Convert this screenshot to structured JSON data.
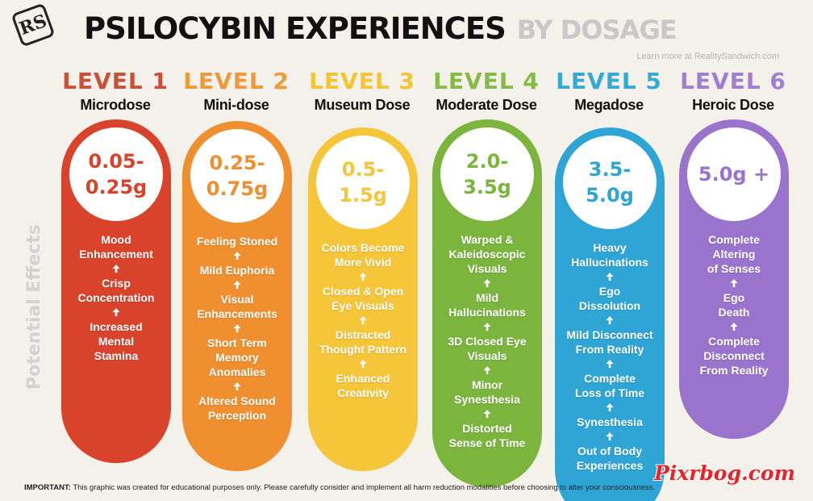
{
  "brand": {
    "logo_text": "RS"
  },
  "header": {
    "title_main": "PSILOCYBIN EXPERIENCES",
    "title_sub": "BY DOSAGE",
    "learn_more": "Learn more at RealitySandwich.com"
  },
  "side_label": "Potential Effects",
  "levels": [
    {
      "title": "LEVEL 1",
      "name": "Microdose",
      "dose": "0.05-\n0.25g",
      "color": "#d9432b",
      "title_color": "#c9513a",
      "effects": [
        "Mood\nEnhancement",
        "Crisp\nConcentration",
        "Increased\nMental\nStamina"
      ]
    },
    {
      "title": "LEVEL 2",
      "name": "Mini-dose",
      "dose": "0.25-\n0.75g",
      "color": "#ef8f2f",
      "title_color": "#ef9a3a",
      "effects": [
        "Feeling Stoned",
        "Mild Euphoria",
        "Visual\nEnhancements",
        "Short Term\nMemory\nAnomalies",
        "Altered Sound\nPerception"
      ]
    },
    {
      "title": "LEVEL 3",
      "name": "Museum Dose",
      "dose": "0.5-\n1.5g",
      "color": "#f5c53a",
      "title_color": "#f3c536",
      "effects": [
        "Colors Become\nMore Vivid",
        "Closed & Open\nEye Visuals",
        "Distracted\nThought Pattern",
        "Enhanced\nCreativity"
      ]
    },
    {
      "title": "LEVEL 4",
      "name": "Moderate Dose",
      "dose": "2.0-\n3.5g",
      "color": "#7bb53e",
      "title_color": "#86bb46",
      "effects": [
        "Warped &\nKaleidoscopic\nVisuals",
        "Mild\nHallucinations",
        "3D Closed Eye\nVisuals",
        "Minor\nSynesthesia",
        "Distorted\nSense of Time"
      ]
    },
    {
      "title": "LEVEL 5",
      "name": "Megadose",
      "dose": "3.5-\n5.0g",
      "color": "#2fa5d6",
      "title_color": "#35a9d8",
      "effects": [
        "Heavy\nHallucinations",
        "Ego\nDissolution",
        "Mild Disconnect\nFrom Reality",
        "Complete\nLoss of Time",
        "Synesthesia",
        "Out of Body\nExperiences"
      ]
    },
    {
      "title": "LEVEL 6",
      "name": "Heroic Dose",
      "dose": "5.0g +",
      "color": "#9a74cc",
      "title_color": "#a07fce",
      "effects": [
        "Complete\nAltering\nof Senses",
        "Ego\nDeath",
        "Complete\nDisconnect\nFrom Reality"
      ]
    }
  ],
  "footer": {
    "label": "IMPORTANT:",
    "text": " This graphic was created for educational purposes only. Please carefully consider and implement all harm reduction modalities before choosing to alter your consciousness."
  },
  "watermark": "Pixrbog.com"
}
